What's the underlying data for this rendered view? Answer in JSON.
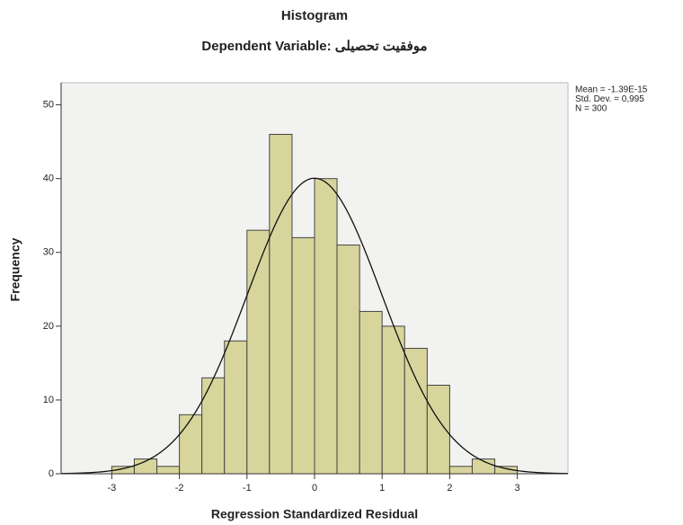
{
  "chart_data": {
    "type": "histogram",
    "title": "Histogram",
    "subtitle": "Dependent Variable: موفقیت تحصیلی",
    "x_label": "Regression Standardized Residual",
    "y_label": "Frequency",
    "bins": [
      -3,
      -2.667,
      -2.333,
      -2,
      -1.667,
      -1.333,
      -1,
      -0.667,
      -0.333,
      0,
      0.333,
      0.667,
      1,
      1.333,
      1.667,
      2,
      2.333,
      2.667,
      3
    ],
    "values": [
      1,
      2,
      1,
      8,
      13,
      18,
      33,
      46,
      32,
      40,
      31,
      22,
      20,
      17,
      12,
      1,
      2,
      1
    ],
    "color": "#d8d59c",
    "xlim": [
      -3.75,
      3.75
    ],
    "xticks": [
      -3,
      -2,
      -1,
      0,
      1,
      2,
      3
    ],
    "ylim": [
      0,
      53
    ],
    "yticks": [
      0,
      10,
      20,
      30,
      40,
      50
    ],
    "annotations": [
      "Mean = -1.39E-15",
      "Std. Dev. = 0,995",
      "N = 300"
    ],
    "normal_curve": {
      "mean": -1.39e-15,
      "std": 0.995,
      "n": 300
    }
  }
}
